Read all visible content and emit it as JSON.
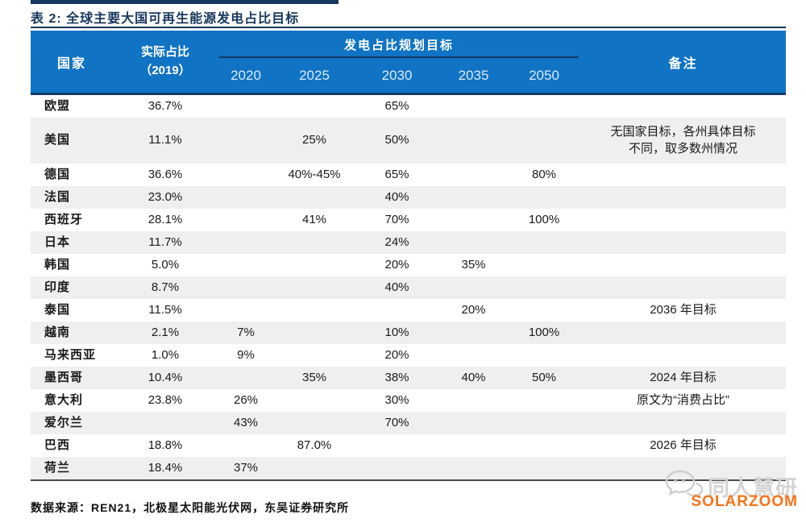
{
  "page": {
    "title": "表 2:  全球主要大国可再生能源发电占比目标",
    "source_note": "数据来源：REN21，北极星太阳能光伏网，东吴证券研究所"
  },
  "colors": {
    "header_blue": "#1173C4",
    "dark_navy": "#17375E",
    "row_stripe": "#EFEFEF",
    "table_bottom_border": "#4A4A4A",
    "watermark_orange": "#F87316",
    "watermark_gray": "#D4D4D4"
  },
  "table": {
    "header": {
      "country": "国家",
      "actual_line1": "实际占比",
      "actual_line2": "（2019）",
      "plan_title": "发电占比规划目标",
      "years": [
        "2020",
        "2025",
        "2030",
        "2035",
        "2050"
      ],
      "remark": "备注"
    },
    "col_keys": [
      "country",
      "actual",
      "y2020",
      "y2025",
      "y2030",
      "y2035",
      "y2050",
      "remark"
    ],
    "rows": [
      {
        "country": "欧盟",
        "actual": "36.7%",
        "y2020": "",
        "y2025": "",
        "y2030": "65%",
        "y2035": "",
        "y2050": "",
        "remark": ""
      },
      {
        "country": "美国",
        "actual": "11.1%",
        "y2020": "",
        "y2025": "25%",
        "y2030": "50%",
        "y2035": "",
        "y2050": "",
        "remark": "无国家目标，各州具体目标\n不同，取多数州情况",
        "tall": true
      },
      {
        "country": "德国",
        "actual": "36.6%",
        "y2020": "",
        "y2025": "40%-45%",
        "y2030": "65%",
        "y2035": "",
        "y2050": "80%",
        "remark": ""
      },
      {
        "country": "法国",
        "actual": "23.0%",
        "y2020": "",
        "y2025": "",
        "y2030": "40%",
        "y2035": "",
        "y2050": "",
        "remark": ""
      },
      {
        "country": "西班牙",
        "actual": "28.1%",
        "y2020": "",
        "y2025": "41%",
        "y2030": "70%",
        "y2035": "",
        "y2050": "100%",
        "remark": ""
      },
      {
        "country": "日本",
        "actual": "11.7%",
        "y2020": "",
        "y2025": "",
        "y2030": "24%",
        "y2035": "",
        "y2050": "",
        "remark": ""
      },
      {
        "country": "韩国",
        "actual": "5.0%",
        "y2020": "",
        "y2025": "",
        "y2030": "20%",
        "y2035": "35%",
        "y2050": "",
        "remark": ""
      },
      {
        "country": "印度",
        "actual": "8.7%",
        "y2020": "",
        "y2025": "",
        "y2030": "40%",
        "y2035": "",
        "y2050": "",
        "remark": ""
      },
      {
        "country": "泰国",
        "actual": "11.5%",
        "y2020": "",
        "y2025": "",
        "y2030": "",
        "y2035": "20%",
        "y2050": "",
        "remark": "2036 年目标"
      },
      {
        "country": "越南",
        "actual": "2.1%",
        "y2020": "7%",
        "y2025": "",
        "y2030": "10%",
        "y2035": "",
        "y2050": "100%",
        "remark": ""
      },
      {
        "country": "马来西亚",
        "actual": "1.0%",
        "y2020": "9%",
        "y2025": "",
        "y2030": "20%",
        "y2035": "",
        "y2050": "",
        "remark": ""
      },
      {
        "country": "墨西哥",
        "actual": "10.4%",
        "y2020": "",
        "y2025": "35%",
        "y2030": "38%",
        "y2035": "40%",
        "y2050": "50%",
        "remark": "2024 年目标"
      },
      {
        "country": "意大利",
        "actual": "23.8%",
        "y2020": "26%",
        "y2025": "",
        "y2030": "30%",
        "y2035": "",
        "y2050": "",
        "remark": "原文为“消费占比”"
      },
      {
        "country": "爱尔兰",
        "actual": "",
        "y2020": "43%",
        "y2025": "",
        "y2030": "70%",
        "y2035": "",
        "y2050": "",
        "remark": ""
      },
      {
        "country": "巴西",
        "actual": "18.8%",
        "y2020": "",
        "y2025": "87.0%",
        "y2030": "",
        "y2035": "",
        "y2050": "",
        "remark": "2026 年目标"
      },
      {
        "country": "荷兰",
        "actual": "18.4%",
        "y2020": "37%",
        "y2025": "",
        "y2030": "",
        "y2035": "",
        "y2050": "",
        "remark": ""
      }
    ]
  },
  "watermark": {
    "brand_cn": "同人慧研",
    "brand_en": "SOLARZOOM",
    "icon": "chat-bubbles-icon"
  }
}
